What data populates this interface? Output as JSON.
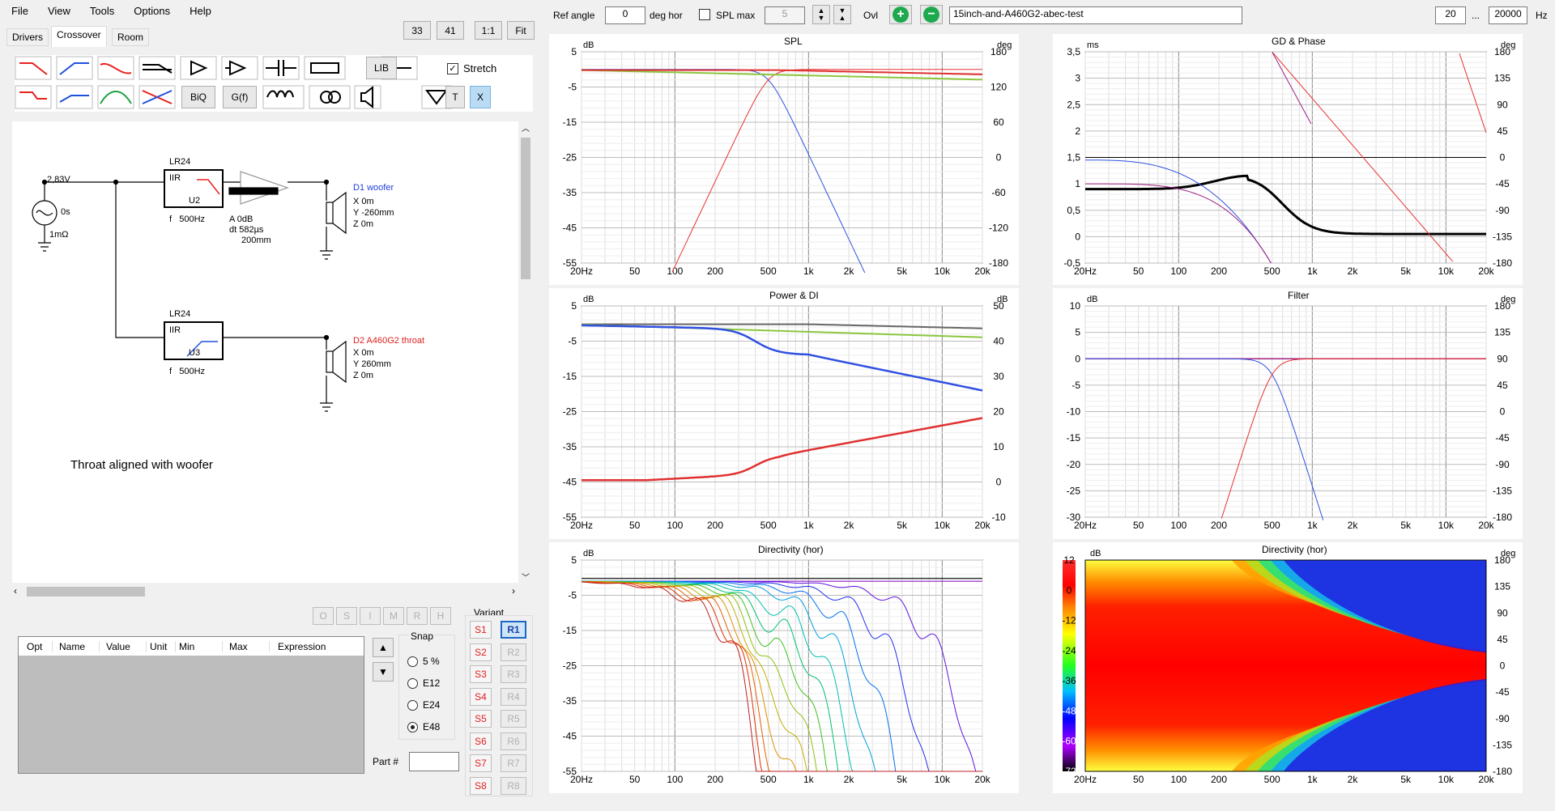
{
  "menu": [
    "File",
    "View",
    "Tools",
    "Options",
    "Help"
  ],
  "tabs": [
    "Drivers",
    "Crossover",
    "Room"
  ],
  "zoom_buttons": [
    "33",
    "41",
    "1:1",
    "Fit"
  ],
  "toolbar": {
    "lib_label": "LIB",
    "biq_label": "BiQ",
    "gf_label": "G(f)",
    "t_label": "T",
    "x_label": "X",
    "stretch_label": "Stretch",
    "stretch_checked": true
  },
  "schematic": {
    "source": {
      "voltage": "2,83V",
      "delay": "0s",
      "impedance": "1mΩ"
    },
    "filter_u2": {
      "type": "LR24",
      "impl": "IIR",
      "ref": "U2",
      "freq": "f   500Hz"
    },
    "filter_u3": {
      "type": "LR24",
      "impl": "IIR",
      "ref": "U3",
      "freq": "f   500Hz"
    },
    "amp": {
      "gain_label": "A  0dB",
      "delay_label": "dt 582µs",
      "dist_label": "200mm"
    },
    "d1": {
      "name": "D1 woofer",
      "x": "X 0m",
      "y": "Y -260mm",
      "z": "Z 0m"
    },
    "d2": {
      "name": "D2 A460G2 throat",
      "x": "X 0m",
      "y": "Y 260mm",
      "z": "Z 0m"
    },
    "note": "Throat aligned with woofer"
  },
  "params_buttons": [
    "O",
    "S",
    "I",
    "M",
    "R",
    "H"
  ],
  "table_headers": [
    "Opt",
    "Name",
    "Value",
    "Unit",
    "Min",
    "Max",
    "Expression"
  ],
  "snap": {
    "title": "Snap",
    "options": [
      "5 %",
      "E12",
      "E24",
      "E48"
    ],
    "selected": "E48"
  },
  "part_label": "Part #",
  "variant": {
    "title": "Variant",
    "s": [
      "S1",
      "S2",
      "S3",
      "S4",
      "S5",
      "S6",
      "S7",
      "S8"
    ],
    "r": [
      "R1",
      "R2",
      "R3",
      "R4",
      "R5",
      "R6",
      "R7",
      "R8"
    ],
    "selected": "R1"
  },
  "topbar": {
    "ref_angle_label": "Ref angle",
    "ref_angle_value": "0",
    "deg_hor": "deg hor",
    "spl_max_label": "SPL max",
    "spl_max_value": "5",
    "ovl_label": "Ovl",
    "project": "15inch-and-A460G2-abec-test",
    "freq_min": "20",
    "ellipsis": "...",
    "freq_max": "20000",
    "hz": "Hz"
  },
  "colors": {
    "woofer": "#3050e0",
    "throat": "#e83030",
    "sum": "#e03030",
    "green": "#8cc63f",
    "gray": "#666666",
    "black": "#000000",
    "purple": "#a02080"
  },
  "xticks": [
    "20Hz",
    "50",
    "100",
    "200",
    "500",
    "1k",
    "2k",
    "5k",
    "10k",
    "20k"
  ],
  "charts": {
    "spl": {
      "title": "SPL",
      "ylabel": "dB",
      "y2label": "deg",
      "yticks": [
        "5",
        "-5",
        "-15",
        "-25",
        "-35",
        "-45",
        "-55"
      ],
      "y2ticks": [
        "180",
        "120",
        "60",
        "0",
        "-60",
        "-120",
        "-180"
      ]
    },
    "gd": {
      "title": "GD & Phase",
      "ylabel": "ms",
      "y2label": "deg",
      "yticks": [
        "3,5",
        "3",
        "2,5",
        "2",
        "1,5",
        "1",
        "0,5",
        "0",
        "-0,5"
      ],
      "y2ticks": [
        "180",
        "135",
        "90",
        "45",
        "0",
        "-45",
        "-90",
        "-135",
        "-180"
      ]
    },
    "power": {
      "title": "Power & DI",
      "ylabel": "dB",
      "y2label": "dB",
      "yticks": [
        "5",
        "-5",
        "-15",
        "-25",
        "-35",
        "-45",
        "-55"
      ],
      "y2ticks": [
        "50",
        "40",
        "30",
        "20",
        "10",
        "0",
        "-10"
      ]
    },
    "filter": {
      "title": "Filter",
      "ylabel": "dB",
      "y2label": "deg",
      "yticks": [
        "10",
        "5",
        "0",
        "-5",
        "-10",
        "-15",
        "-20",
        "-25",
        "-30"
      ],
      "y2ticks": [
        "180",
        "135",
        "90",
        "45",
        "0",
        "-45",
        "-90",
        "-135",
        "-180"
      ]
    },
    "dir": {
      "title": "Directivity (hor)",
      "ylabel": "dB",
      "yticks": [
        "5",
        "-5",
        "-15",
        "-25",
        "-35",
        "-45",
        "-55"
      ]
    },
    "map": {
      "title": "Directivity (hor)",
      "ylabel": "dB",
      "y2label": "deg",
      "scale": [
        "12",
        "0",
        "-12",
        "-24",
        "-36",
        "-48",
        "-60",
        "-72"
      ],
      "y2ticks": [
        "180",
        "135",
        "90",
        "45",
        "0",
        "-45",
        "-90",
        "-135",
        "-180"
      ]
    }
  }
}
